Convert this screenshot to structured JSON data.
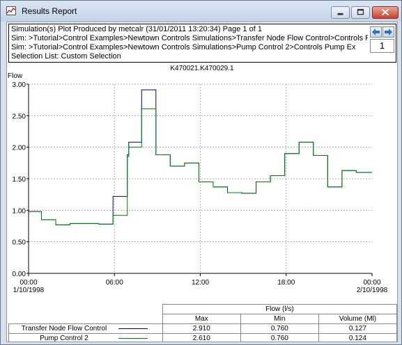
{
  "window": {
    "title": "Results Report",
    "icon": "results-chart-icon",
    "controls": [
      "minimize-icon",
      "maximize-icon",
      "close-icon"
    ]
  },
  "header": {
    "lines": [
      "Simulation(s) Plot Produced by metcalr (31/01/2011 13:20:34) Page 1 of 1",
      "Sim: >Tutorial>Control Examples>Newtown Controls Simulations>Transfer Node Flow Control>Controls Pump Ex",
      "Sim: >Tutorial>Control Examples>Newtown Controls Simulations>Pump Control 2>Controls Pump Ex",
      "Selection List: Custom Selection"
    ],
    "prev_icon": "arrow-left-icon",
    "next_icon": "arrow-right-icon",
    "page_number": "1"
  },
  "chart_data": {
    "type": "line",
    "title": "K470021.K470029.1",
    "ylabel": "Flow",
    "xlabel": "",
    "ylim": [
      0,
      3
    ],
    "xlim_hours": [
      0,
      24
    ],
    "grid": true,
    "y_ticks": [
      "0.00",
      "0.50",
      "1.00",
      "1.50",
      "2.00",
      "2.50",
      "3.00"
    ],
    "x_ticks": [
      {
        "time": "00:00",
        "date": "1/10/1998"
      },
      {
        "time": "06:00",
        "date": ""
      },
      {
        "time": "12:00",
        "date": ""
      },
      {
        "time": "18:00",
        "date": ""
      },
      {
        "time": "00:00",
        "date": "2/10/1998"
      }
    ],
    "series": [
      {
        "name": "Transfer Node Flow Control",
        "color": "#000080",
        "step": true,
        "points": [
          [
            0,
            0.98
          ],
          [
            0.9,
            0.98
          ],
          [
            0.9,
            0.85
          ],
          [
            1.9,
            0.85
          ],
          [
            1.9,
            0.77
          ],
          [
            2.9,
            0.77
          ],
          [
            2.9,
            0.79
          ],
          [
            4.9,
            0.79
          ],
          [
            4.9,
            0.78
          ],
          [
            5.9,
            0.78
          ],
          [
            5.9,
            1.22
          ],
          [
            6.9,
            1.22
          ],
          [
            6.9,
            1.88
          ],
          [
            7.0,
            1.88
          ],
          [
            7.0,
            2.08
          ],
          [
            7.9,
            2.08
          ],
          [
            7.9,
            2.91
          ],
          [
            8.9,
            2.91
          ],
          [
            8.9,
            1.88
          ],
          [
            9.9,
            1.88
          ],
          [
            9.9,
            1.7
          ],
          [
            10.9,
            1.7
          ],
          [
            10.9,
            1.75
          ],
          [
            11.9,
            1.75
          ],
          [
            11.9,
            1.45
          ],
          [
            12.9,
            1.45
          ],
          [
            12.9,
            1.37
          ],
          [
            13.9,
            1.37
          ],
          [
            13.9,
            1.28
          ],
          [
            14.9,
            1.28
          ],
          [
            14.9,
            1.27
          ],
          [
            15.9,
            1.27
          ],
          [
            15.9,
            1.45
          ],
          [
            16.9,
            1.45
          ],
          [
            16.9,
            1.55
          ],
          [
            17.9,
            1.55
          ],
          [
            17.9,
            1.9
          ],
          [
            18.9,
            1.9
          ],
          [
            18.9,
            2.08
          ],
          [
            19.9,
            2.08
          ],
          [
            19.9,
            1.87
          ],
          [
            20.9,
            1.87
          ],
          [
            20.9,
            1.37
          ],
          [
            21.9,
            1.37
          ],
          [
            21.9,
            1.63
          ],
          [
            22.9,
            1.63
          ],
          [
            22.9,
            1.6
          ],
          [
            24,
            1.6
          ]
        ]
      },
      {
        "name": "Pump Control 2",
        "color": "#008000",
        "step": true,
        "points": [
          [
            0,
            0.98
          ],
          [
            0.9,
            0.98
          ],
          [
            0.9,
            0.85
          ],
          [
            1.9,
            0.85
          ],
          [
            1.9,
            0.77
          ],
          [
            2.9,
            0.77
          ],
          [
            2.9,
            0.79
          ],
          [
            4.9,
            0.79
          ],
          [
            4.9,
            0.78
          ],
          [
            5.9,
            0.78
          ],
          [
            5.9,
            0.92
          ],
          [
            6.9,
            0.92
          ],
          [
            6.9,
            1.85
          ],
          [
            7.0,
            1.85
          ],
          [
            7.0,
            2.0
          ],
          [
            7.9,
            2.0
          ],
          [
            7.9,
            2.61
          ],
          [
            8.9,
            2.61
          ],
          [
            8.9,
            1.88
          ],
          [
            9.9,
            1.88
          ],
          [
            9.9,
            1.7
          ],
          [
            10.9,
            1.7
          ],
          [
            10.9,
            1.75
          ],
          [
            11.9,
            1.75
          ],
          [
            11.9,
            1.45
          ],
          [
            12.9,
            1.45
          ],
          [
            12.9,
            1.37
          ],
          [
            13.9,
            1.37
          ],
          [
            13.9,
            1.28
          ],
          [
            14.9,
            1.28
          ],
          [
            14.9,
            1.27
          ],
          [
            15.9,
            1.27
          ],
          [
            15.9,
            1.45
          ],
          [
            16.9,
            1.45
          ],
          [
            16.9,
            1.55
          ],
          [
            17.9,
            1.55
          ],
          [
            17.9,
            1.9
          ],
          [
            18.9,
            1.9
          ],
          [
            18.9,
            2.08
          ],
          [
            19.9,
            2.08
          ],
          [
            19.9,
            1.87
          ],
          [
            20.9,
            1.87
          ],
          [
            20.9,
            1.37
          ],
          [
            21.9,
            1.37
          ],
          [
            21.9,
            1.63
          ],
          [
            22.9,
            1.63
          ],
          [
            22.9,
            1.6
          ],
          [
            24,
            1.6
          ]
        ]
      }
    ]
  },
  "summary_table": {
    "group_header": "Flow (l/s)",
    "columns": [
      "Max",
      "Min",
      "Volume (Ml)"
    ],
    "rows": [
      {
        "name": "Transfer Node Flow Control",
        "color": "#000080",
        "max": "2.910",
        "min": "0.760",
        "volume": "0.127"
      },
      {
        "name": "Pump Control 2",
        "color": "#008000",
        "max": "2.610",
        "min": "0.760",
        "volume": "0.124"
      }
    ]
  }
}
